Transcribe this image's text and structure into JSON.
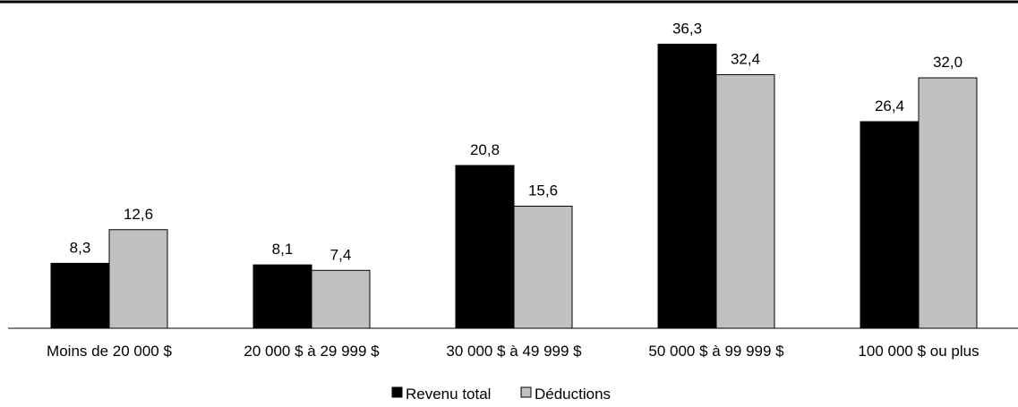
{
  "chart_data": {
    "type": "bar",
    "categories": [
      "Moins de 20 000 $",
      "20 000 $ à 29 999 $",
      "30 000 $ à 49 999 $",
      "50 000 $ à 99 999 $",
      "100 000 $ ou plus"
    ],
    "series": [
      {
        "name": "Revenu total",
        "color": "#000000",
        "values": [
          8.3,
          8.1,
          20.8,
          36.3,
          26.4
        ],
        "labels": [
          "8,3",
          "8,1",
          "20,8",
          "36,3",
          "26,4"
        ]
      },
      {
        "name": "Déductions",
        "color": "#c0c0c0",
        "values": [
          12.6,
          7.4,
          15.6,
          32.4,
          32.0
        ],
        "labels": [
          "12,6",
          "7,4",
          "15,6",
          "32,4",
          "32,0"
        ]
      }
    ],
    "ylim": [
      0,
      40
    ],
    "grid": false,
    "legend_position": "bottom"
  }
}
